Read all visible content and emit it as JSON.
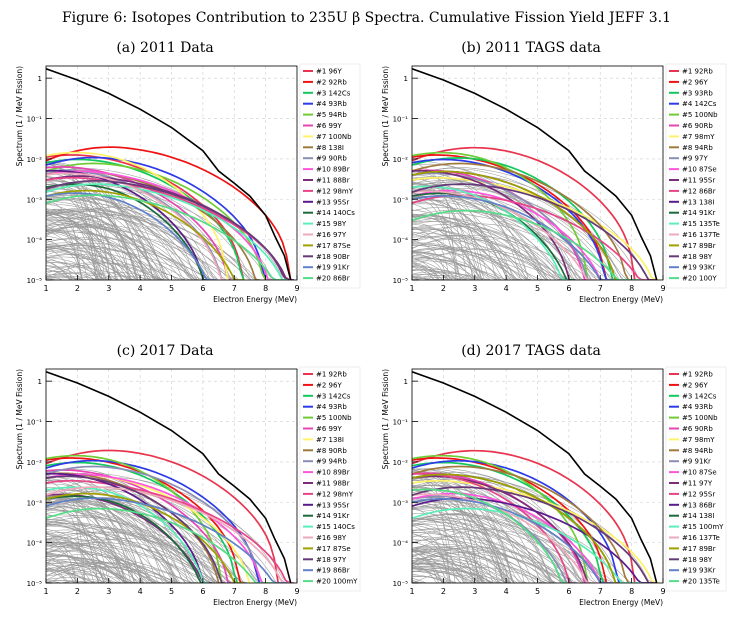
{
  "figure": {
    "title": "Figure 6: Isotopes Contribution to 235U β Spectra. Cumulative Fission Yield JEFF 3.1"
  },
  "colors": {
    "palette": [
      "#e8344e",
      "#ee1212",
      "#12c85c",
      "#2c3ae8",
      "#6fcc35",
      "#e844b4",
      "#fff266",
      "#a07a3c",
      "#8a8eb6",
      "#ff55dd",
      "#7a2e7a",
      "#e84488",
      "#5a1a8a",
      "#1a6a3a",
      "#5aefb8",
      "#eeaabb",
      "#a0a000",
      "#663a78",
      "#6080c8",
      "#55dd88"
    ],
    "background_curves": "#9a9a9a",
    "total": "#000000"
  },
  "chart_data": [
    {
      "id": "a",
      "type": "line",
      "title": "(a) 2011 Data",
      "xlabel": "Electron Energy (MeV)",
      "ylabel": "Spectrum (1 / MeV Fission)",
      "xlim": [
        1,
        9
      ],
      "ylim": [
        1e-05,
        2
      ],
      "yscale": "log",
      "grid": true,
      "legend_position": "right",
      "x_ticks": [
        "1",
        "2",
        "3",
        "4",
        "5",
        "6",
        "7",
        "8",
        "9"
      ],
      "y_ticks": [
        "1",
        "10⁻¹",
        "10⁻²",
        "10⁻³",
        "10⁻⁴",
        "10⁻⁵"
      ],
      "total": {
        "x": [
          1,
          2,
          3,
          4,
          5,
          6,
          6.5,
          7,
          7.5,
          8,
          8.3,
          8.6,
          8.8
        ],
        "y": [
          1.7,
          0.9,
          0.42,
          0.17,
          0.06,
          0.016,
          0.005,
          0.0025,
          0.0012,
          0.0004,
          0.00012,
          4e-05,
          1e-05
        ]
      },
      "series": [
        {
          "name": "#1 96Y",
          "y0": 0.011,
          "peak": 2.3,
          "endpoint": 7.3
        },
        {
          "name": "#2 92Rb",
          "y0": 0.009,
          "peak": 3.5,
          "endpoint": 8.8
        },
        {
          "name": "#3 142Cs",
          "y0": 0.008,
          "peak": 2.5,
          "endpoint": 7.3
        },
        {
          "name": "#4 93Rb",
          "y0": 0.007,
          "peak": 3.0,
          "endpoint": 8.0
        },
        {
          "name": "#5 94Rb",
          "y0": 0.005,
          "peak": 3.0,
          "endpoint": 8.0
        },
        {
          "name": "#6 99Y",
          "y0": 0.006,
          "peak": 2.0,
          "endpoint": 6.9
        },
        {
          "name": "#7 100Nb",
          "y0": 0.012,
          "peak": 2.5,
          "endpoint": 6.8
        },
        {
          "name": "#8 138I",
          "y0": 0.004,
          "peak": 2.5,
          "endpoint": 7.8
        },
        {
          "name": "#9 90Rb",
          "y0": 0.005,
          "peak": 2.0,
          "endpoint": 6.7
        },
        {
          "name": "#10 89Br",
          "y0": 0.004,
          "peak": 2.5,
          "endpoint": 8.2
        },
        {
          "name": "#11 88Br",
          "y0": 0.003,
          "peak": 2.5,
          "endpoint": 8.8
        },
        {
          "name": "#12 98mY",
          "y0": 0.003,
          "peak": 2.2,
          "endpoint": 8.9
        },
        {
          "name": "#13 95Sr",
          "y0": 0.005,
          "peak": 1.8,
          "endpoint": 6.1
        },
        {
          "name": "#14 140Cs",
          "y0": 0.002,
          "peak": 2.5,
          "endpoint": 6.2
        },
        {
          "name": "#15 98Y",
          "y0": 0.0015,
          "peak": 3.0,
          "endpoint": 8.8
        },
        {
          "name": "#16 97Y",
          "y0": 0.004,
          "peak": 2.2,
          "endpoint": 6.7
        },
        {
          "name": "#17 87Se",
          "y0": 0.0012,
          "peak": 2.8,
          "endpoint": 7.3
        },
        {
          "name": "#18 90Br",
          "y0": 0.0018,
          "peak": 3.0,
          "endpoint": 8.9
        },
        {
          "name": "#19 91Kr",
          "y0": 0.0012,
          "peak": 2.5,
          "endpoint": 6.4
        },
        {
          "name": "#20 86Br",
          "y0": 0.0008,
          "peak": 3.0,
          "endpoint": 8.7
        }
      ]
    },
    {
      "id": "b",
      "type": "line",
      "title": "(b) 2011 TAGS data",
      "xlabel": "Electron Energy (MeV)",
      "ylabel": "Spectrum (1 / MeV Fission)",
      "xlim": [
        1,
        9
      ],
      "ylim": [
        1e-05,
        2
      ],
      "yscale": "log",
      "grid": true,
      "legend_position": "right",
      "x_ticks": [
        "1",
        "2",
        "3",
        "4",
        "5",
        "6",
        "7",
        "8",
        "9"
      ],
      "y_ticks": [
        "1",
        "10⁻¹",
        "10⁻²",
        "10⁻³",
        "10⁻⁴",
        "10⁻⁵"
      ],
      "total": {
        "x": [
          1,
          2,
          3,
          4,
          5,
          6,
          6.5,
          7,
          7.5,
          8,
          8.3,
          8.6,
          8.8
        ],
        "y": [
          1.7,
          0.9,
          0.42,
          0.17,
          0.06,
          0.016,
          0.005,
          0.0025,
          0.0012,
          0.0004,
          0.00012,
          4e-05,
          1e-05
        ]
      },
      "series": [
        {
          "name": "#1 92Rb",
          "y0": 0.009,
          "peak": 3.5,
          "endpoint": 8.1
        },
        {
          "name": "#2 96Y",
          "y0": 0.011,
          "peak": 2.3,
          "endpoint": 7.2
        },
        {
          "name": "#3 93Rb",
          "y0": 0.007,
          "peak": 3.0,
          "endpoint": 7.4
        },
        {
          "name": "#4 142Cs",
          "y0": 0.008,
          "peak": 2.5,
          "endpoint": 7.2
        },
        {
          "name": "#5 100Nb",
          "y0": 0.012,
          "peak": 2.5,
          "endpoint": 6.6
        },
        {
          "name": "#6 90Rb",
          "y0": 0.005,
          "peak": 2.0,
          "endpoint": 6.6
        },
        {
          "name": "#7 98mY",
          "y0": 0.003,
          "peak": 2.2,
          "endpoint": 8.9
        },
        {
          "name": "#8 94Rb",
          "y0": 0.005,
          "peak": 3.0,
          "endpoint": 7.9
        },
        {
          "name": "#9 97Y",
          "y0": 0.004,
          "peak": 2.2,
          "endpoint": 6.7
        },
        {
          "name": "#10 87Se",
          "y0": 0.0012,
          "peak": 2.8,
          "endpoint": 7.3
        },
        {
          "name": "#11 95Sr",
          "y0": 0.005,
          "peak": 1.8,
          "endpoint": 6.1
        },
        {
          "name": "#12 86Br",
          "y0": 0.0008,
          "peak": 3.0,
          "endpoint": 8.7
        },
        {
          "name": "#13 138I",
          "y0": 0.004,
          "peak": 2.5,
          "endpoint": 7.6
        },
        {
          "name": "#14 91Kr",
          "y0": 0.0012,
          "peak": 2.5,
          "endpoint": 6.2
        },
        {
          "name": "#15 135Te",
          "y0": 0.002,
          "peak": 2.0,
          "endpoint": 6.0
        },
        {
          "name": "#16 137Te",
          "y0": 0.0015,
          "peak": 2.0,
          "endpoint": 6.9
        },
        {
          "name": "#17 89Br",
          "y0": 0.004,
          "peak": 2.5,
          "endpoint": 7.6
        },
        {
          "name": "#18 98Y",
          "y0": 0.0015,
          "peak": 3.0,
          "endpoint": 8.8
        },
        {
          "name": "#19 93Kr",
          "y0": 0.001,
          "peak": 2.5,
          "endpoint": 7.4
        },
        {
          "name": "#20 100Y",
          "y0": 0.0003,
          "peak": 3.2,
          "endpoint": 8.3
        }
      ]
    },
    {
      "id": "c",
      "type": "line",
      "title": "(c) 2017 Data",
      "xlabel": "Electron Energy (MeV)",
      "ylabel": "Spectrum (1 / MeV Fission)",
      "xlim": [
        1,
        9
      ],
      "ylim": [
        1e-05,
        2
      ],
      "yscale": "log",
      "grid": true,
      "legend_position": "right",
      "x_ticks": [
        "1",
        "2",
        "3",
        "4",
        "5",
        "6",
        "7",
        "8",
        "9"
      ],
      "y_ticks": [
        "1",
        "10⁻¹",
        "10⁻²",
        "10⁻³",
        "10⁻⁴",
        "10⁻⁵"
      ],
      "total": {
        "x": [
          1,
          2,
          3,
          4,
          5,
          6,
          6.5,
          7,
          7.5,
          8,
          8.3,
          8.6,
          8.8
        ],
        "y": [
          1.7,
          0.9,
          0.42,
          0.17,
          0.06,
          0.016,
          0.005,
          0.0025,
          0.0012,
          0.0004,
          0.00012,
          4e-05,
          1e-05
        ]
      },
      "series": [
        {
          "name": "#1 92Rb",
          "y0": 0.009,
          "peak": 3.5,
          "endpoint": 8.4
        },
        {
          "name": "#2 96Y",
          "y0": 0.011,
          "peak": 2.3,
          "endpoint": 7.2
        },
        {
          "name": "#3 142Cs",
          "y0": 0.008,
          "peak": 2.5,
          "endpoint": 7.1
        },
        {
          "name": "#4 93Rb",
          "y0": 0.007,
          "peak": 3.0,
          "endpoint": 7.8
        },
        {
          "name": "#5 100Nb",
          "y0": 0.012,
          "peak": 2.5,
          "endpoint": 6.6
        },
        {
          "name": "#6 99Y",
          "y0": 0.006,
          "peak": 2.0,
          "endpoint": 6.9
        },
        {
          "name": "#7 138I",
          "y0": 0.004,
          "peak": 2.5,
          "endpoint": 7.6
        },
        {
          "name": "#8 90Rb",
          "y0": 0.005,
          "peak": 2.0,
          "endpoint": 6.6
        },
        {
          "name": "#9 94Rb",
          "y0": 0.005,
          "peak": 3.0,
          "endpoint": 7.9
        },
        {
          "name": "#10 89Br",
          "y0": 0.004,
          "peak": 2.5,
          "endpoint": 8.0
        },
        {
          "name": "#11 98Br",
          "y0": 0.0015,
          "peak": 2.0,
          "endpoint": 6.3
        },
        {
          "name": "#12 98mY",
          "y0": 0.003,
          "peak": 2.2,
          "endpoint": 8.9
        },
        {
          "name": "#13 95Sr",
          "y0": 0.005,
          "peak": 1.8,
          "endpoint": 6.1
        },
        {
          "name": "#14 91Kr",
          "y0": 0.0012,
          "peak": 2.5,
          "endpoint": 6.2
        },
        {
          "name": "#15 140Cs",
          "y0": 0.002,
          "peak": 2.5,
          "endpoint": 6.2
        },
        {
          "name": "#16 98Y",
          "y0": 0.0015,
          "peak": 3.0,
          "endpoint": 8.8
        },
        {
          "name": "#17 87Se",
          "y0": 0.0012,
          "peak": 2.8,
          "endpoint": 7.3
        },
        {
          "name": "#18 97Y",
          "y0": 0.004,
          "peak": 2.2,
          "endpoint": 6.7
        },
        {
          "name": "#19 86Br",
          "y0": 0.0008,
          "peak": 3.0,
          "endpoint": 8.7
        },
        {
          "name": "#20 100mY",
          "y0": 0.0004,
          "peak": 3.2,
          "endpoint": 8.3
        }
      ]
    },
    {
      "id": "d",
      "type": "line",
      "title": "(d) 2017 TAGS data",
      "xlabel": "Electron Energy (MeV)",
      "ylabel": "Spectrum (1 / MeV Fission)",
      "xlim": [
        1,
        9
      ],
      "ylim": [
        1e-05,
        2
      ],
      "yscale": "log",
      "grid": true,
      "legend_position": "right",
      "x_ticks": [
        "1",
        "2",
        "3",
        "4",
        "5",
        "6",
        "7",
        "8",
        "9"
      ],
      "y_ticks": [
        "1",
        "10⁻¹",
        "10⁻²",
        "10⁻³",
        "10⁻⁴",
        "10⁻⁵"
      ],
      "total": {
        "x": [
          1,
          2,
          3,
          4,
          5,
          6,
          6.5,
          7,
          7.5,
          8,
          8.3,
          8.6,
          8.8
        ],
        "y": [
          1.7,
          0.9,
          0.42,
          0.17,
          0.06,
          0.016,
          0.005,
          0.0025,
          0.0012,
          0.0004,
          0.00012,
          4e-05,
          1e-05
        ]
      },
      "series": [
        {
          "name": "#1 92Rb",
          "y0": 0.009,
          "peak": 3.5,
          "endpoint": 8.1
        },
        {
          "name": "#2 96Y",
          "y0": 0.011,
          "peak": 2.3,
          "endpoint": 7.2
        },
        {
          "name": "#3 142Cs",
          "y0": 0.008,
          "peak": 2.5,
          "endpoint": 7.1
        },
        {
          "name": "#4 93Rb",
          "y0": 0.007,
          "peak": 3.0,
          "endpoint": 7.6
        },
        {
          "name": "#5 100Nb",
          "y0": 0.012,
          "peak": 2.5,
          "endpoint": 6.6
        },
        {
          "name": "#6 90Rb",
          "y0": 0.005,
          "peak": 2.0,
          "endpoint": 6.6
        },
        {
          "name": "#7 98mY",
          "y0": 0.003,
          "peak": 2.2,
          "endpoint": 8.9
        },
        {
          "name": "#8 94Rb",
          "y0": 0.005,
          "peak": 3.0,
          "endpoint": 7.9
        },
        {
          "name": "#9 91Kr",
          "y0": 0.0012,
          "peak": 2.5,
          "endpoint": 6.2
        },
        {
          "name": "#10 87Se",
          "y0": 0.0012,
          "peak": 2.8,
          "endpoint": 7.3
        },
        {
          "name": "#11 97Y",
          "y0": 0.004,
          "peak": 2.2,
          "endpoint": 6.7
        },
        {
          "name": "#12 95Sr",
          "y0": 0.005,
          "peak": 1.8,
          "endpoint": 6.1
        },
        {
          "name": "#13 86Br",
          "y0": 0.0008,
          "peak": 3.0,
          "endpoint": 8.7
        },
        {
          "name": "#14 138I",
          "y0": 0.004,
          "peak": 2.5,
          "endpoint": 7.6
        },
        {
          "name": "#15 100mY",
          "y0": 0.0004,
          "peak": 3.2,
          "endpoint": 8.3
        },
        {
          "name": "#16 137Te",
          "y0": 0.0015,
          "peak": 2.0,
          "endpoint": 6.9
        },
        {
          "name": "#17 89Br",
          "y0": 0.004,
          "peak": 2.5,
          "endpoint": 7.6
        },
        {
          "name": "#18 98Y",
          "y0": 0.0015,
          "peak": 3.0,
          "endpoint": 8.8
        },
        {
          "name": "#19 93Kr",
          "y0": 0.001,
          "peak": 2.5,
          "endpoint": 7.4
        },
        {
          "name": "#20 135Te",
          "y0": 0.002,
          "peak": 2.0,
          "endpoint": 6.0
        }
      ]
    }
  ]
}
